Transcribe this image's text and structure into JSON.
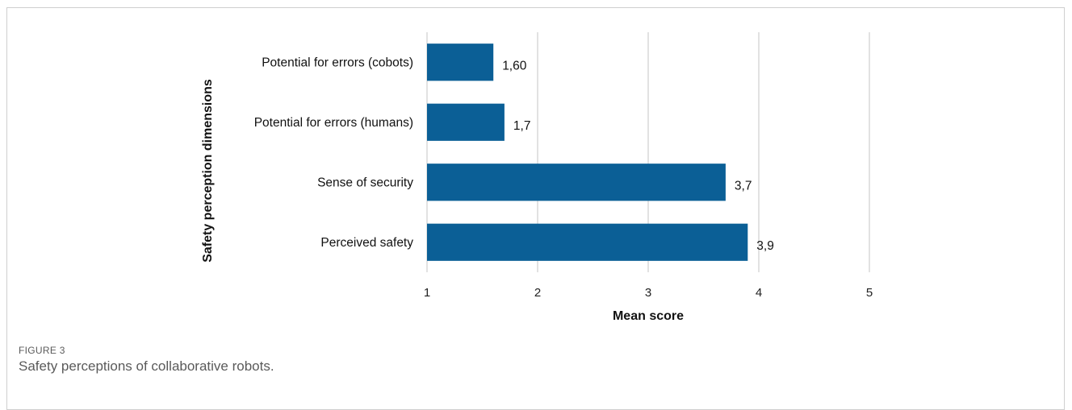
{
  "figure": {
    "label": "FIGURE 3",
    "caption": "Safety perceptions of collaborative robots."
  },
  "chart_data": {
    "type": "bar",
    "orientation": "horizontal",
    "categories": [
      "Potential for errors (cobots)",
      "Potential for errors (humans)",
      "Sense of security",
      "Perceived safety"
    ],
    "values": [
      1.6,
      1.7,
      3.7,
      3.9
    ],
    "data_labels": [
      "1,60",
      "1,7",
      "3,7",
      "3,9"
    ],
    "xlabel": "Mean score",
    "ylabel": "Safety perception dimensions",
    "xlim": [
      1,
      5
    ],
    "xticks": [
      1,
      2,
      3,
      4,
      5
    ],
    "grid": true,
    "legend": "none",
    "bar_color": "#0b5f96",
    "grid_color": "#d9d9d9"
  }
}
